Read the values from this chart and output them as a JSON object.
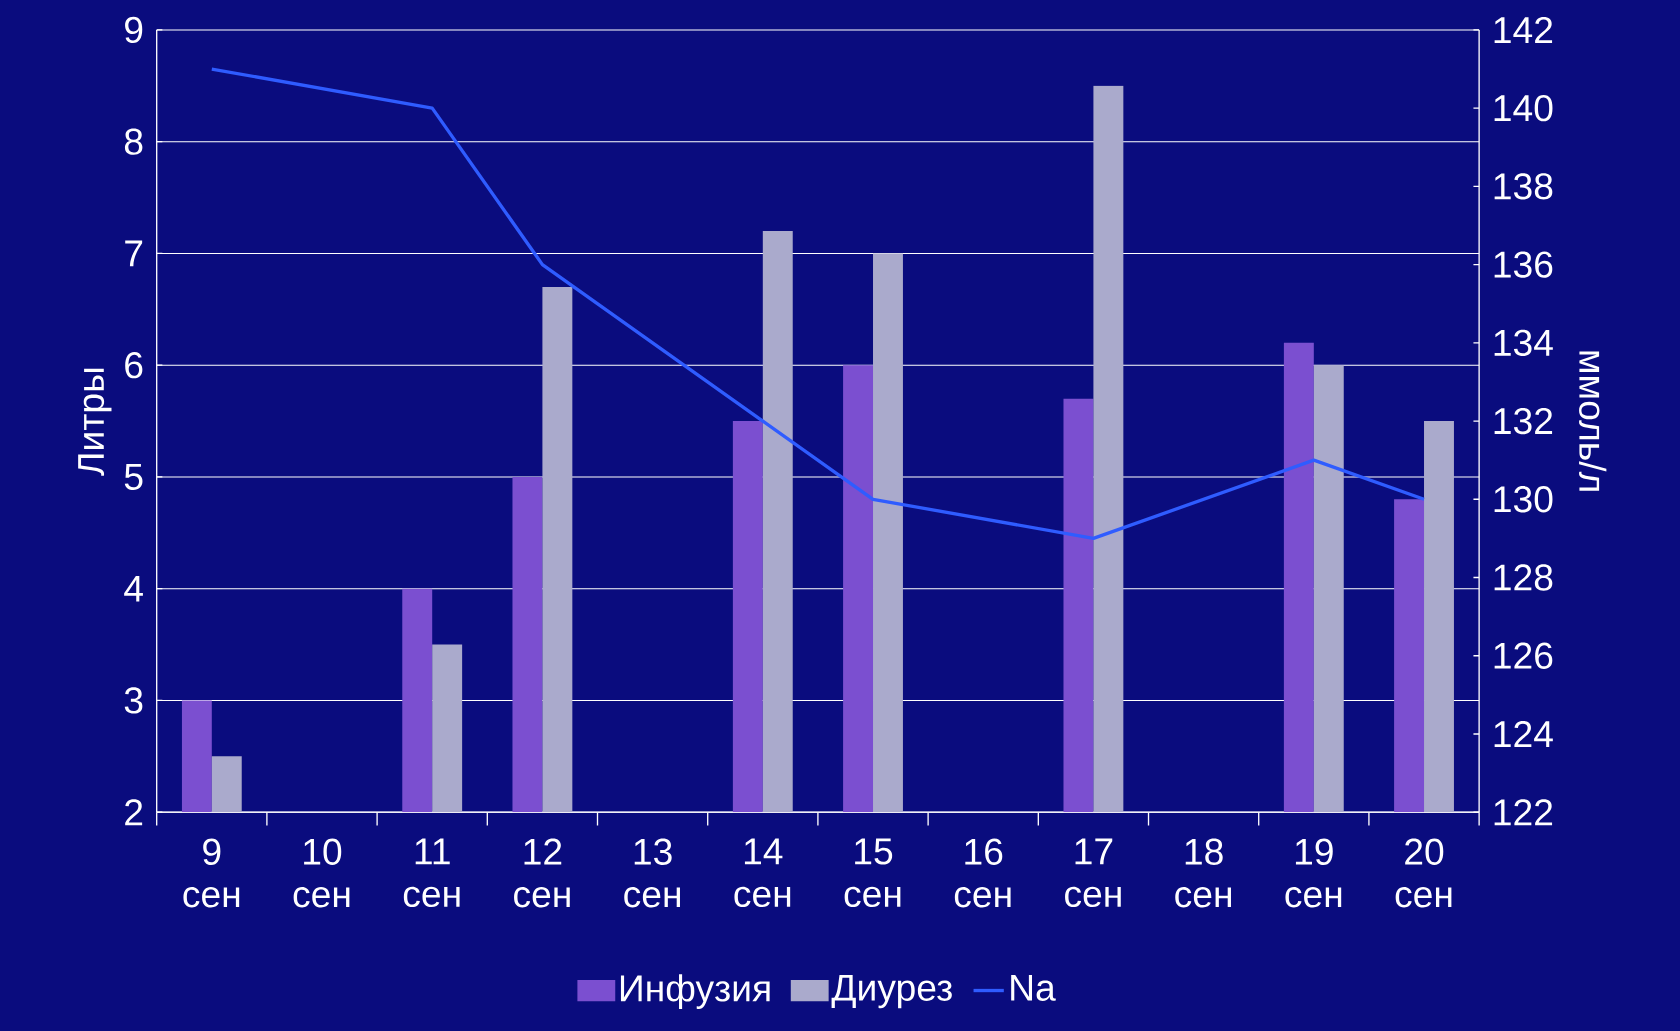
{
  "chart_data": {
    "type": "bar",
    "categories": [
      "9 сен",
      "10 сен",
      "11 сен",
      "12 сен",
      "13 сен",
      "14 сен",
      "15 сен",
      "16 сен",
      "17 сен",
      "18 сен",
      "19 сен",
      "20 сен"
    ],
    "series": [
      {
        "name": "Инфузия",
        "color": "#7b4fd0",
        "values": [
          3,
          null,
          4,
          5,
          null,
          5.5,
          6,
          null,
          5.7,
          null,
          6.2,
          4.8
        ]
      },
      {
        "name": "Диурез",
        "color": "#aaaacc",
        "values": [
          2.5,
          null,
          3.5,
          6.7,
          null,
          7.2,
          7.0,
          null,
          8.5,
          null,
          6.0,
          5.5
        ]
      },
      {
        "name": "Na",
        "type": "line",
        "axis": "y2",
        "color": "#2f5cff",
        "values": [
          141,
          null,
          140,
          136,
          null,
          132,
          130,
          null,
          129,
          null,
          131,
          130
        ]
      }
    ],
    "ylabel": "Литры",
    "y2label": "ммоль/л",
    "ylim": [
      2,
      9
    ],
    "yticks": [
      2,
      3,
      4,
      5,
      6,
      7,
      8,
      9
    ],
    "y2lim": [
      122,
      142
    ],
    "y2ticks": [
      122,
      124,
      126,
      128,
      130,
      132,
      134,
      136,
      138,
      140,
      142
    ],
    "grid": "y",
    "legend": "bottom"
  }
}
